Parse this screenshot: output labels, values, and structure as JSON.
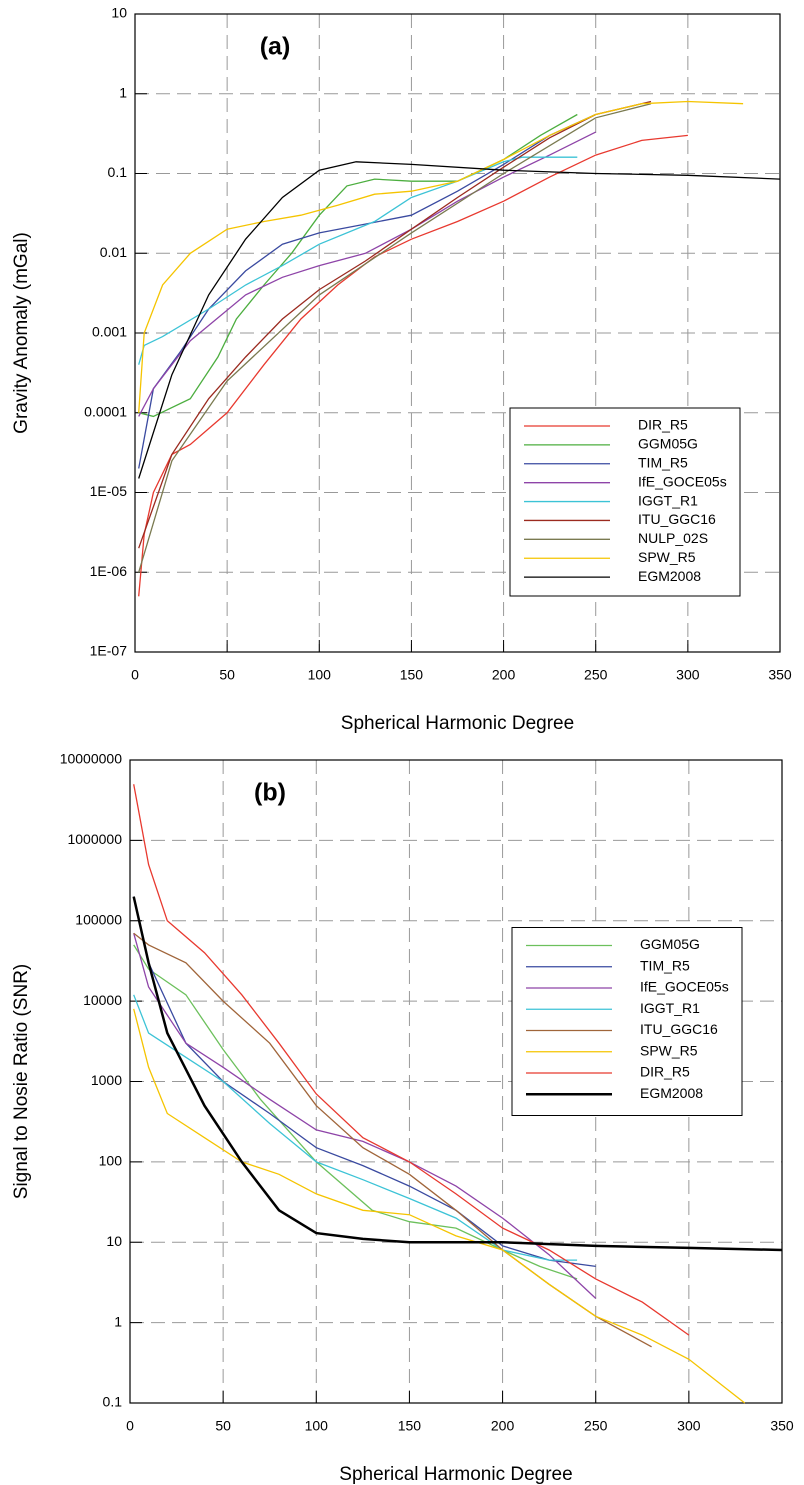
{
  "chart_data": [
    {
      "type": "line",
      "panel_label": "(a)",
      "x_label": "Spherical Harmonic Degree",
      "y_label": "Gravity Anomaly (mGal)",
      "xlim": [
        0,
        350
      ],
      "xticks": [
        0,
        50,
        100,
        150,
        200,
        250,
        300,
        350
      ],
      "ylim": [
        1e-07,
        10
      ],
      "log_y": true,
      "yticks": [
        {
          "value": 1e-07,
          "label": "1E-07"
        },
        {
          "value": 1e-06,
          "label": "1E-06"
        },
        {
          "value": 1e-05,
          "label": "1E-05"
        },
        0.0001,
        0.001,
        0.01,
        0.1,
        1,
        10
      ],
      "grid": true,
      "legend": "lower right",
      "series": [
        {
          "name": "DIR_R5",
          "color": "#e8392f",
          "x": [
            2,
            5,
            10,
            20,
            30,
            50,
            70,
            90,
            110,
            130,
            150,
            175,
            200,
            225,
            250,
            275,
            300
          ],
          "values": [
            5e-07,
            3e-06,
            1e-05,
            3e-05,
            4e-05,
            0.0001,
            0.0004,
            0.0015,
            0.004,
            0.009,
            0.015,
            0.025,
            0.045,
            0.09,
            0.17,
            0.26,
            0.3
          ]
        },
        {
          "name": "GGM05G",
          "color": "#4cae3f",
          "x": [
            2,
            10,
            30,
            45,
            55,
            70,
            85,
            100,
            115,
            130,
            150,
            175,
            200,
            220,
            240
          ],
          "values": [
            0.0001,
            9e-05,
            0.00015,
            0.0005,
            0.0015,
            0.004,
            0.01,
            0.03,
            0.07,
            0.085,
            0.08,
            0.08,
            0.15,
            0.3,
            0.55
          ]
        },
        {
          "name": "TIM_R5",
          "color": "#3a4aa0",
          "x": [
            2,
            10,
            25,
            40,
            60,
            80,
            100,
            120,
            150,
            175,
            200,
            225,
            250
          ],
          "values": [
            2e-05,
            0.0002,
            0.0006,
            0.002,
            0.006,
            0.013,
            0.018,
            0.022,
            0.03,
            0.06,
            0.13,
            0.3,
            0.55
          ]
        },
        {
          "name": "IfE_GOCE05s",
          "color": "#8e44a8",
          "x": [
            2,
            10,
            30,
            60,
            80,
            100,
            125,
            150,
            175,
            200,
            225,
            250
          ],
          "values": [
            9e-05,
            0.0002,
            0.0008,
            0.003,
            0.005,
            0.007,
            0.01,
            0.02,
            0.045,
            0.09,
            0.17,
            0.33
          ]
        },
        {
          "name": "IGGT_R1",
          "color": "#3cc3d6",
          "x": [
            2,
            5,
            15,
            40,
            60,
            80,
            100,
            130,
            150,
            175,
            200,
            210,
            240
          ],
          "values": [
            0.0004,
            0.0007,
            0.0009,
            0.002,
            0.004,
            0.007,
            0.013,
            0.025,
            0.05,
            0.08,
            0.14,
            0.16,
            0.16
          ]
        },
        {
          "name": "ITU_GGC16",
          "color": "#9b2a1f",
          "x": [
            2,
            20,
            40,
            60,
            80,
            100,
            125,
            150,
            175,
            200,
            225,
            250,
            280
          ],
          "values": [
            2e-06,
            3e-05,
            0.00015,
            0.0005,
            0.0015,
            0.0035,
            0.008,
            0.02,
            0.05,
            0.12,
            0.28,
            0.55,
            0.8
          ]
        },
        {
          "name": "NULP_02S",
          "color": "#7a7a50",
          "x": [
            2,
            20,
            50,
            100,
            150,
            200,
            250,
            280
          ],
          "values": [
            1e-06,
            2.5e-05,
            0.00025,
            0.003,
            0.018,
            0.1,
            0.5,
            0.75
          ]
        },
        {
          "name": "SPW_R5",
          "color": "#f5c400",
          "x": [
            2,
            5,
            15,
            30,
            50,
            70,
            90,
            110,
            130,
            150,
            175,
            200,
            225,
            250,
            275,
            300,
            330
          ],
          "values": [
            0.0001,
            0.001,
            0.004,
            0.01,
            0.02,
            0.025,
            0.03,
            0.04,
            0.055,
            0.06,
            0.08,
            0.15,
            0.3,
            0.55,
            0.75,
            0.8,
            0.75
          ]
        },
        {
          "name": "EGM2008",
          "color": "#000000",
          "x": [
            2,
            20,
            40,
            60,
            80,
            100,
            120,
            150,
            200,
            250,
            300,
            350
          ],
          "values": [
            1.5e-05,
            0.0003,
            0.003,
            0.015,
            0.05,
            0.11,
            0.14,
            0.13,
            0.11,
            0.1,
            0.095,
            0.085
          ]
        }
      ]
    },
    {
      "type": "line",
      "panel_label": "(b)",
      "x_label": "Spherical Harmonic Degree",
      "y_label": "Signal to Nosie Ratio (SNR)",
      "xlim": [
        0,
        350
      ],
      "xticks": [
        0,
        50,
        100,
        150,
        200,
        250,
        300,
        350
      ],
      "ylim": [
        0.1,
        10000000
      ],
      "log_y": true,
      "yticks": [
        0.1,
        1,
        10,
        100,
        1000,
        10000,
        100000,
        1000000,
        10000000
      ],
      "grid": true,
      "legend": "center right",
      "series": [
        {
          "name": "GGM05G",
          "color": "#6cc05c",
          "x": [
            2,
            10,
            30,
            50,
            70,
            100,
            130,
            150,
            175,
            200,
            220,
            240
          ],
          "values": [
            50000,
            25000,
            12000,
            2500,
            600,
            100,
            25,
            18,
            15,
            8,
            5,
            3.5
          ]
        },
        {
          "name": "TIM_R5",
          "color": "#3a4aa0",
          "x": [
            2,
            10,
            30,
            50,
            75,
            100,
            125,
            150,
            175,
            200,
            225,
            250
          ],
          "values": [
            200000,
            30000,
            3000,
            1000,
            400,
            150,
            90,
            50,
            25,
            9,
            6,
            5
          ]
        },
        {
          "name": "IfE_GOCE05s",
          "color": "#8e44a8",
          "x": [
            2,
            10,
            30,
            50,
            75,
            100,
            125,
            150,
            175,
            200,
            225,
            250
          ],
          "values": [
            70000,
            15000,
            3000,
            1500,
            600,
            250,
            180,
            100,
            50,
            20,
            7,
            2
          ]
        },
        {
          "name": "IGGT_R1",
          "color": "#3cc3d6",
          "x": [
            2,
            10,
            30,
            50,
            75,
            100,
            125,
            150,
            175,
            200,
            225,
            240
          ],
          "values": [
            12000,
            4000,
            2000,
            1000,
            300,
            100,
            60,
            35,
            20,
            8,
            6,
            6
          ]
        },
        {
          "name": "ITU_GGC16",
          "color": "#a0653a",
          "x": [
            2,
            10,
            30,
            50,
            75,
            100,
            125,
            150,
            175,
            200,
            225,
            250,
            280
          ],
          "values": [
            70000,
            50000,
            30000,
            10000,
            3000,
            500,
            150,
            70,
            25,
            8,
            3,
            1.2,
            0.5
          ]
        },
        {
          "name": "SPW_R5",
          "color": "#f5c400",
          "x": [
            2,
            10,
            20,
            40,
            60,
            80,
            100,
            125,
            150,
            175,
            200,
            225,
            250,
            275,
            300,
            330
          ],
          "values": [
            8000,
            1500,
            400,
            200,
            100,
            70,
            40,
            25,
            22,
            12,
            8,
            3,
            1.2,
            0.7,
            0.35,
            0.1
          ]
        },
        {
          "name": "DIR_R5",
          "color": "#e8392f",
          "x": [
            2,
            10,
            20,
            40,
            60,
            80,
            100,
            125,
            150,
            175,
            200,
            225,
            250,
            275,
            300
          ],
          "values": [
            5000000,
            500000,
            100000,
            40000,
            12000,
            3000,
            700,
            200,
            100,
            40,
            15,
            8,
            3.5,
            1.8,
            0.7
          ]
        },
        {
          "name": "EGM2008",
          "color": "#000000",
          "linewidth": 2.5,
          "x": [
            2,
            10,
            20,
            40,
            60,
            80,
            100,
            125,
            150,
            200,
            250,
            300,
            350
          ],
          "values": [
            200000,
            30000,
            4000,
            500,
            100,
            25,
            13,
            11,
            10,
            10,
            9,
            8.5,
            8
          ]
        }
      ]
    }
  ]
}
